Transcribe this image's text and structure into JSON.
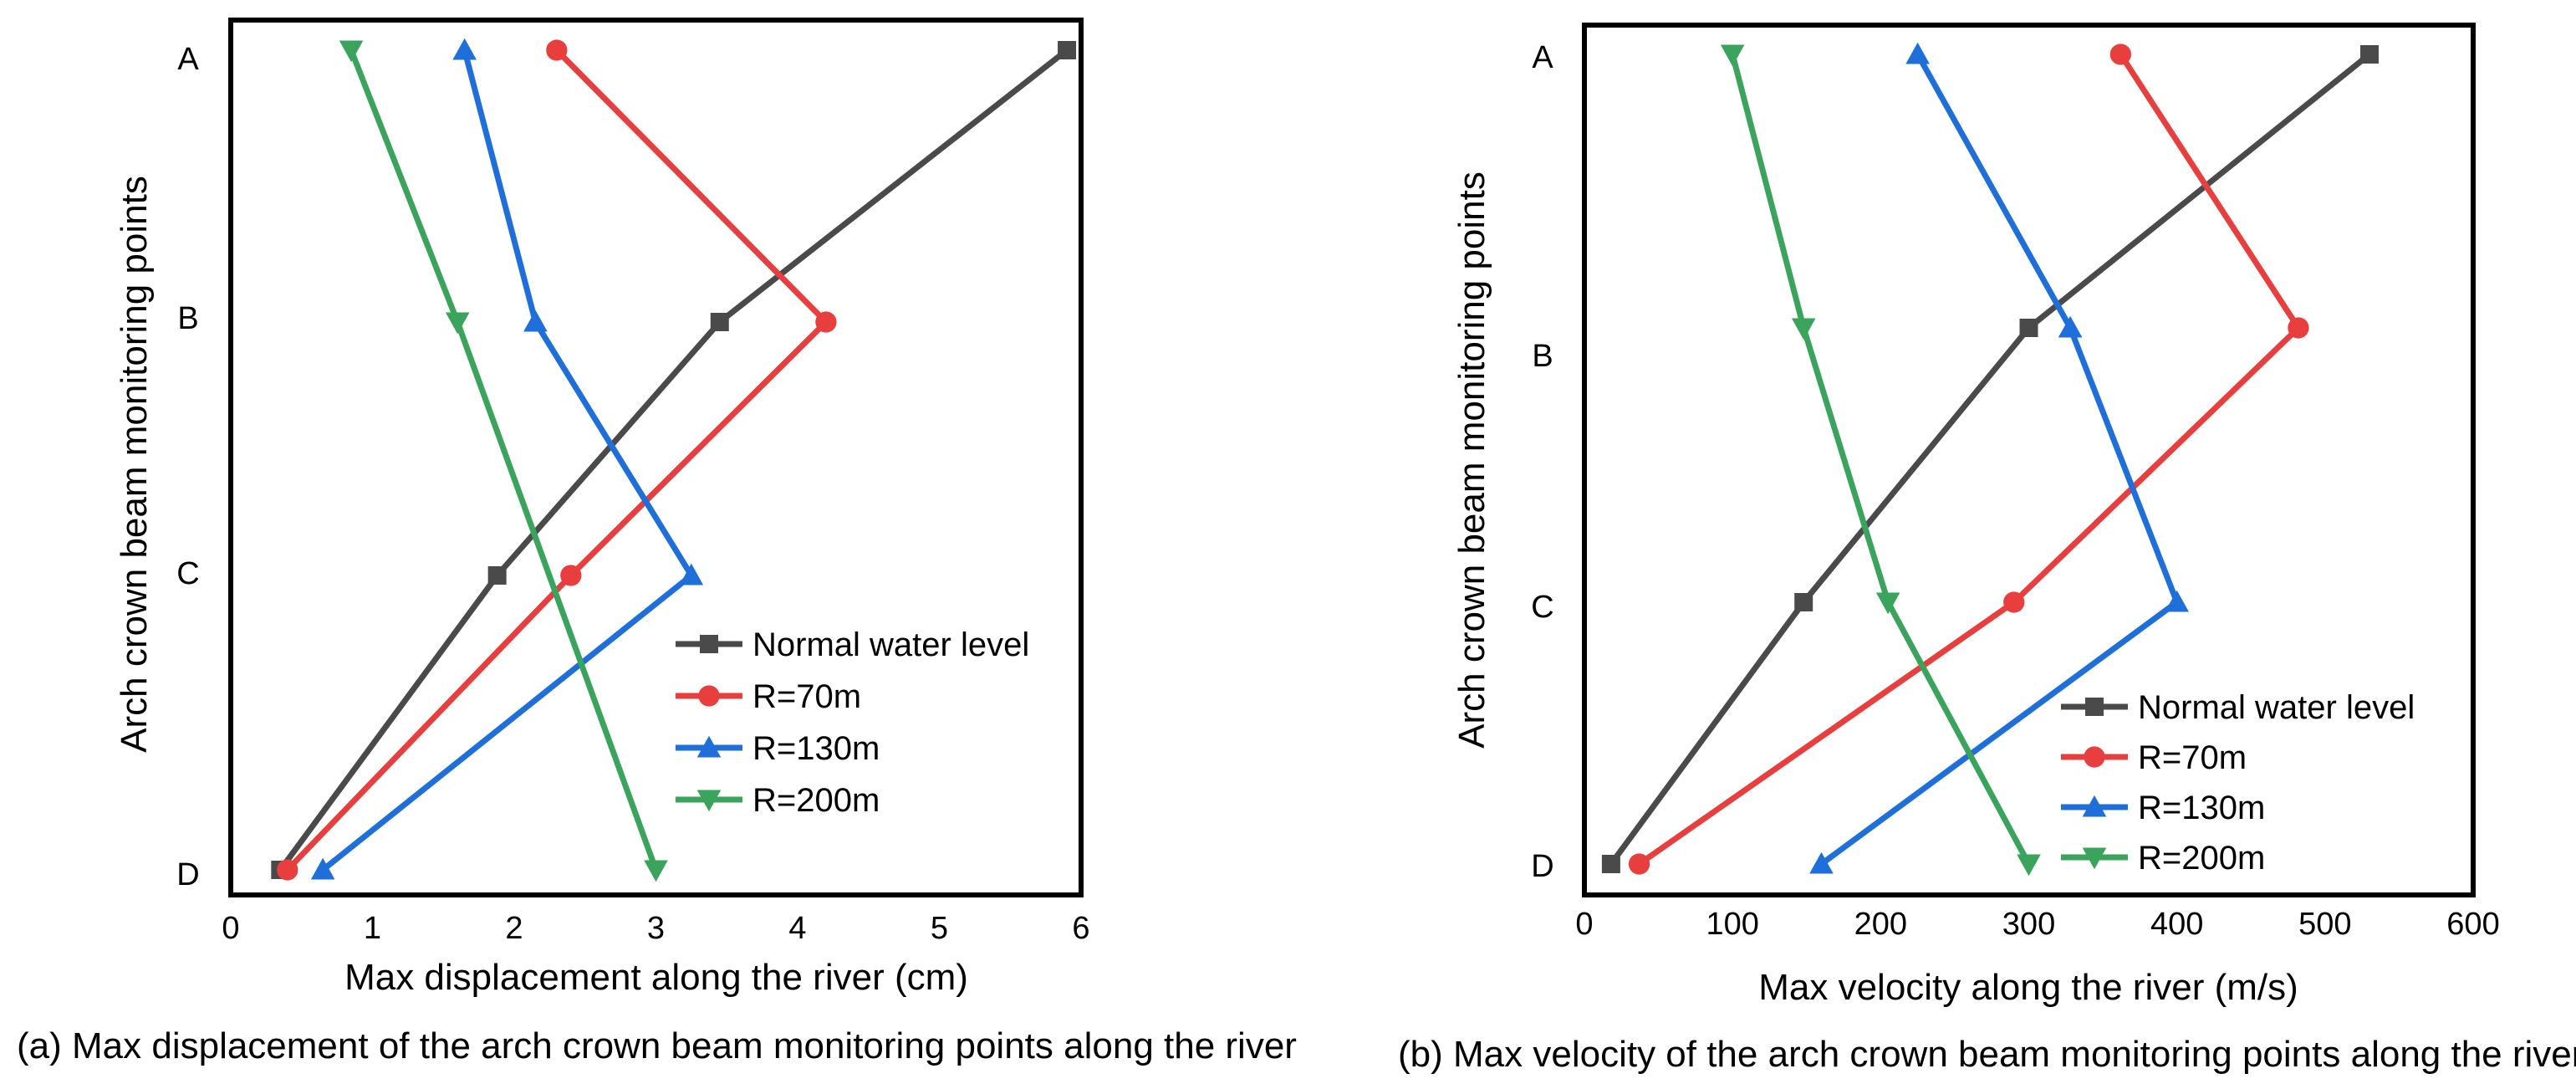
{
  "chart_data": [
    {
      "id": "a",
      "type": "line",
      "orientation": "y-categorical",
      "caption": "(a) Max displacement of the arch crown beam monitoring points along the river",
      "xlabel": "Max displacement along the river (cm)",
      "ylabel": "Arch crown beam monitoring points",
      "xlim": [
        0,
        6
      ],
      "xticks": [
        "0",
        "1",
        "2",
        "3",
        "4",
        "5",
        "6"
      ],
      "categories": [
        "A",
        "B",
        "C",
        "D"
      ],
      "legend_position": "lower-right",
      "series": [
        {
          "name": "Normal water level",
          "color": "#4a4a4a",
          "marker": "square",
          "values": [
            5.9,
            3.45,
            1.88,
            0.35
          ]
        },
        {
          "name": "R=70m",
          "color": "#e83e3e",
          "marker": "circle",
          "values": [
            2.3,
            4.2,
            2.4,
            0.4
          ]
        },
        {
          "name": "R=130m",
          "color": "#1e6fd9",
          "marker": "triangle-up",
          "values": [
            1.65,
            2.15,
            3.25,
            0.65
          ]
        },
        {
          "name": "R=200m",
          "color": "#3aa35c",
          "marker": "triangle-down",
          "values": [
            0.85,
            1.6,
            null,
            3.0
          ]
        }
      ]
    },
    {
      "id": "b",
      "type": "line",
      "orientation": "y-categorical",
      "caption": "(b) Max velocity of the arch crown beam monitoring points along the river",
      "xlabel": "Max velocity along the river (m/s)",
      "ylabel": "Arch crown beam monitoring points",
      "xlim": [
        0,
        600
      ],
      "xticks": [
        "0",
        "100",
        "200",
        "300",
        "400",
        "500",
        "600"
      ],
      "categories": [
        "A",
        "B",
        "C",
        "D"
      ],
      "legend_position": "lower-right",
      "series": [
        {
          "name": "Normal water level",
          "color": "#4a4a4a",
          "marker": "square",
          "values": [
            530,
            300,
            148,
            18
          ]
        },
        {
          "name": "R=70m",
          "color": "#e83e3e",
          "marker": "circle",
          "values": [
            362,
            482,
            290,
            37
          ]
        },
        {
          "name": "R=130m",
          "color": "#1e6fd9",
          "marker": "triangle-up",
          "values": [
            225,
            328,
            400,
            160
          ]
        },
        {
          "name": "R=200m",
          "color": "#3aa35c",
          "marker": "triangle-down",
          "values": [
            100,
            148,
            205,
            300
          ]
        }
      ]
    }
  ]
}
